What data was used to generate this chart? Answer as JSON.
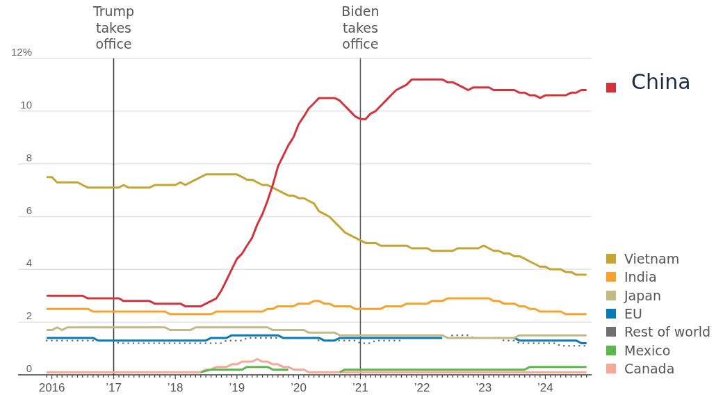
{
  "chart_data": {
    "type": "line",
    "line_style": "solid",
    "grid": "y",
    "legend": "right",
    "xlim": [
      "2015-06-15",
      "2024-10"
    ],
    "xticks": [
      {
        "value": "2015-12",
        "label": null
      },
      {
        "value": "2016-01",
        "label": "2016"
      },
      {
        "value": "2016-02",
        "label": null
      },
      {
        "value": "2016-03",
        "label": null
      },
      {
        "value": "2016-04",
        "label": null
      },
      {
        "value": "2016-05",
        "label": null
      },
      {
        "value": "2016-06",
        "label": null
      },
      {
        "value": "2016-07",
        "label": null
      },
      {
        "value": "2016-08",
        "label": null
      },
      {
        "value": "2016-09",
        "label": null
      },
      {
        "value": "2016-10",
        "label": null
      },
      {
        "value": "2016-11",
        "label": null
      },
      {
        "value": "2016-12",
        "label": null
      },
      {
        "value": "2017-01",
        "label": "’17"
      },
      {
        "value": "2017-02",
        "label": null
      },
      {
        "value": "2017-03",
        "label": null
      },
      {
        "value": "2017-04",
        "label": null
      },
      {
        "value": "2017-05",
        "label": null
      },
      {
        "value": "2017-06",
        "label": null
      },
      {
        "value": "2017-07",
        "label": null
      },
      {
        "value": "2017-08",
        "label": null
      },
      {
        "value": "2017-09",
        "label": null
      },
      {
        "value": "2017-10",
        "label": null
      },
      {
        "value": "2017-11",
        "label": null
      },
      {
        "value": "2017-12",
        "label": null
      },
      {
        "value": "2018-01",
        "label": "’18"
      },
      {
        "value": "2018-02",
        "label": null
      },
      {
        "value": "2018-03",
        "label": null
      },
      {
        "value": "2018-04",
        "label": null
      },
      {
        "value": "2018-05",
        "label": null
      },
      {
        "value": "2018-06",
        "label": null
      },
      {
        "value": "2018-07",
        "label": null
      },
      {
        "value": "2018-08",
        "label": null
      },
      {
        "value": "2018-09",
        "label": null
      },
      {
        "value": "2018-10",
        "label": null
      },
      {
        "value": "2018-11",
        "label": null
      },
      {
        "value": "2018-12",
        "label": null
      },
      {
        "value": "2019-01",
        "label": "’19"
      },
      {
        "value": "2019-02",
        "label": null
      },
      {
        "value": "2019-03",
        "label": null
      },
      {
        "value": "2019-04",
        "label": null
      },
      {
        "value": "2019-05",
        "label": null
      },
      {
        "value": "2019-06",
        "label": null
      },
      {
        "value": "2019-07",
        "label": null
      },
      {
        "value": "2019-08",
        "label": null
      },
      {
        "value": "2019-09",
        "label": null
      },
      {
        "value": "2019-10",
        "label": null
      },
      {
        "value": "2019-11",
        "label": null
      },
      {
        "value": "2019-12",
        "label": null
      },
      {
        "value": "2020-01",
        "label": "’20"
      },
      {
        "value": "2020-02",
        "label": null
      },
      {
        "value": "2020-03",
        "label": null
      },
      {
        "value": "2020-04",
        "label": null
      },
      {
        "value": "2020-05",
        "label": null
      },
      {
        "value": "2020-06",
        "label": null
      },
      {
        "value": "2020-07",
        "label": null
      },
      {
        "value": "2020-08",
        "label": null
      },
      {
        "value": "2020-09",
        "label": null
      },
      {
        "value": "2020-10",
        "label": null
      },
      {
        "value": "2020-11",
        "label": null
      },
      {
        "value": "2020-12",
        "label": null
      },
      {
        "value": "2021-01",
        "label": "’21"
      },
      {
        "value": "2021-02",
        "label": null
      },
      {
        "value": "2021-03",
        "label": null
      },
      {
        "value": "2021-04",
        "label": null
      },
      {
        "value": "2021-05",
        "label": null
      },
      {
        "value": "2021-06",
        "label": null
      },
      {
        "value": "2021-07",
        "label": null
      },
      {
        "value": "2021-08",
        "label": null
      },
      {
        "value": "2021-09",
        "label": null
      },
      {
        "value": "2021-10",
        "label": null
      },
      {
        "value": "2021-11",
        "label": null
      },
      {
        "value": "2021-12",
        "label": null
      },
      {
        "value": "2022-01",
        "label": "’22"
      },
      {
        "value": "2022-02",
        "label": null
      },
      {
        "value": "2022-03",
        "label": null
      },
      {
        "value": "2022-04",
        "label": null
      },
      {
        "value": "2022-05",
        "label": null
      },
      {
        "value": "2022-06",
        "label": null
      },
      {
        "value": "2022-07",
        "label": null
      },
      {
        "value": "2022-08",
        "label": null
      },
      {
        "value": "2022-09",
        "label": null
      },
      {
        "value": "2022-10",
        "label": null
      },
      {
        "value": "2022-11",
        "label": null
      },
      {
        "value": "2022-12",
        "label": null
      },
      {
        "value": "2023-01",
        "label": "’23"
      },
      {
        "value": "2023-02",
        "label": null
      },
      {
        "value": "2023-03",
        "label": null
      },
      {
        "value": "2023-04",
        "label": null
      },
      {
        "value": "2023-05",
        "label": null
      },
      {
        "value": "2023-06",
        "label": null
      },
      {
        "value": "2023-07",
        "label": null
      },
      {
        "value": "2023-08",
        "label": null
      },
      {
        "value": "2023-09",
        "label": null
      },
      {
        "value": "2023-10",
        "label": null
      },
      {
        "value": "2023-11",
        "label": null
      },
      {
        "value": "2023-12",
        "label": null
      },
      {
        "value": "2024-01",
        "label": "’24"
      },
      {
        "value": "2024-02",
        "label": null
      },
      {
        "value": "2024-03",
        "label": null
      },
      {
        "value": "2024-04",
        "label": null
      },
      {
        "value": "2024-05",
        "label": null
      },
      {
        "value": "2024-06",
        "label": null
      },
      {
        "value": "2024-07",
        "label": null
      },
      {
        "value": "2024-08",
        "label": null
      },
      {
        "value": "2024-09",
        "label": null
      }
    ],
    "ylim": [
      0,
      12
    ],
    "yticks": [
      0,
      2,
      4,
      6,
      8,
      10,
      {
        "value": 12,
        "label": "12%"
      }
    ],
    "ref_lines": [
      {
        "axis": "x",
        "value": "2017-01",
        "label": "Trump takes office",
        "color": "#333333"
      },
      {
        "axis": "x",
        "value": "2021-01",
        "label": "Biden takes office",
        "color": "#555555"
      }
    ],
    "series": [
      {
        "name": "China",
        "color": "#d2343d",
        "x": [
          "2015-12",
          "2016-07",
          "2016-08",
          "2017-02",
          "2017-03",
          "2017-08",
          "2017-09",
          "2018-02",
          "2018-03",
          "2018-06",
          "2018-07",
          "2018-08",
          "2018-09",
          "2018-10",
          "2018-11",
          "2018-12",
          "2019-01",
          "2019-02",
          "2019-03",
          "2019-04",
          "2019-05",
          "2019-06",
          "2019-07",
          "2019-08",
          "2019-09",
          "2019-10",
          "2019-11",
          "2019-12",
          "2020-01",
          "2020-02",
          "2020-03",
          "2020-04",
          "2020-05",
          "2020-08",
          "2020-09",
          "2020-10",
          "2020-11",
          "2020-12",
          "2021-01",
          "2021-02",
          "2021-03",
          "2021-04",
          "2021-05",
          "2021-06",
          "2021-07",
          "2021-08",
          "2021-09",
          "2021-10",
          "2021-11",
          "2022-05",
          "2022-06",
          "2022-07",
          "2022-08",
          "2022-09",
          "2022-10",
          "2022-11",
          "2023-02",
          "2023-03",
          "2023-07",
          "2023-08",
          "2023-09",
          "2023-10",
          "2023-11",
          "2023-12",
          "2024-01",
          "2024-05",
          "2024-06",
          "2024-07",
          "2024-08",
          "2024-09"
        ],
        "values": [
          3.0,
          3.0,
          2.9,
          2.9,
          2.8,
          2.8,
          2.7,
          2.7,
          2.6,
          2.6,
          2.7,
          2.8,
          2.9,
          3.2,
          3.6,
          4.0,
          4.4,
          4.6,
          4.9,
          5.2,
          5.7,
          6.1,
          6.6,
          7.2,
          7.9,
          8.3,
          8.7,
          9.0,
          9.5,
          9.8,
          10.1,
          10.3,
          10.5,
          10.5,
          10.4,
          10.2,
          10.0,
          9.8,
          9.7,
          9.7,
          9.9,
          10.0,
          10.2,
          10.4,
          10.6,
          10.8,
          10.9,
          11.0,
          11.2,
          11.2,
          11.1,
          11.1,
          11.0,
          10.9,
          10.8,
          10.9,
          10.9,
          10.8,
          10.8,
          10.7,
          10.7,
          10.6,
          10.6,
          10.5,
          10.6,
          10.6,
          10.7,
          10.7,
          10.8,
          10.8
        ]
      },
      {
        "name": "Vietnam",
        "color": "#c4a433",
        "x": [
          "2015-12",
          "2016-01",
          "2016-02",
          "2016-06",
          "2016-07",
          "2016-08",
          "2017-02",
          "2017-03",
          "2017-04",
          "2017-08",
          "2017-09",
          "2018-01",
          "2018-02",
          "2018-03",
          "2018-04",
          "2018-05",
          "2018-06",
          "2018-07",
          "2019-01",
          "2019-02",
          "2019-03",
          "2019-04",
          "2019-05",
          "2019-06",
          "2019-07",
          "2019-08",
          "2019-09",
          "2019-10",
          "2019-11",
          "2019-12",
          "2020-01",
          "2020-02",
          "2020-03",
          "2020-04",
          "2020-05",
          "2020-06",
          "2020-07",
          "2020-08",
          "2020-09",
          "2020-10",
          "2020-11",
          "2020-12",
          "2021-01",
          "2021-02",
          "2021-04",
          "2021-05",
          "2021-10",
          "2021-11",
          "2022-02",
          "2022-03",
          "2022-07",
          "2022-08",
          "2022-12",
          "2023-01",
          "2023-02",
          "2023-03",
          "2023-04",
          "2023-05",
          "2023-06",
          "2023-07",
          "2023-08",
          "2023-09",
          "2023-10",
          "2023-11",
          "2023-12",
          "2024-01",
          "2024-02",
          "2024-04",
          "2024-05",
          "2024-06",
          "2024-07",
          "2024-09"
        ],
        "values": [
          7.5,
          7.5,
          7.3,
          7.3,
          7.2,
          7.1,
          7.1,
          7.2,
          7.1,
          7.1,
          7.2,
          7.2,
          7.3,
          7.2,
          7.3,
          7.4,
          7.5,
          7.6,
          7.6,
          7.5,
          7.4,
          7.4,
          7.3,
          7.2,
          7.2,
          7.1,
          7.0,
          6.9,
          6.8,
          6.8,
          6.7,
          6.7,
          6.6,
          6.5,
          6.2,
          6.1,
          6.0,
          5.8,
          5.6,
          5.4,
          5.3,
          5.2,
          5.1,
          5.0,
          5.0,
          4.9,
          4.9,
          4.8,
          4.8,
          4.7,
          4.7,
          4.8,
          4.8,
          4.9,
          4.8,
          4.7,
          4.7,
          4.6,
          4.6,
          4.5,
          4.5,
          4.4,
          4.3,
          4.2,
          4.1,
          4.1,
          4.0,
          4.0,
          3.9,
          3.9,
          3.8,
          3.8
        ]
      },
      {
        "name": "India",
        "color": "#f8a12b",
        "x": [
          "2015-12",
          "2016-08",
          "2016-09",
          "2017-11",
          "2017-12",
          "2018-08",
          "2018-09",
          "2019-06",
          "2019-07",
          "2019-08",
          "2019-09",
          "2019-12",
          "2020-01",
          "2020-03",
          "2020-04",
          "2020-05",
          "2020-06",
          "2020-07",
          "2020-08",
          "2020-11",
          "2020-12",
          "2021-05",
          "2021-06",
          "2021-09",
          "2021-10",
          "2022-02",
          "2022-03",
          "2022-05",
          "2022-06",
          "2023-02",
          "2023-03",
          "2023-04",
          "2023-05",
          "2023-07",
          "2023-08",
          "2023-09",
          "2023-10",
          "2023-11",
          "2023-12",
          "2024-04",
          "2024-05",
          "2024-09"
        ],
        "values": [
          2.5,
          2.5,
          2.4,
          2.4,
          2.3,
          2.3,
          2.4,
          2.4,
          2.5,
          2.5,
          2.6,
          2.6,
          2.7,
          2.7,
          2.8,
          2.8,
          2.7,
          2.7,
          2.6,
          2.6,
          2.5,
          2.5,
          2.6,
          2.6,
          2.7,
          2.7,
          2.8,
          2.8,
          2.9,
          2.9,
          2.8,
          2.8,
          2.7,
          2.7,
          2.6,
          2.6,
          2.5,
          2.5,
          2.4,
          2.4,
          2.3,
          2.3
        ]
      },
      {
        "name": "Japan",
        "color": "#bfba86",
        "x": [
          "2015-12",
          "2016-01",
          "2016-02",
          "2016-03",
          "2016-04",
          "2017-11",
          "2017-12",
          "2018-04",
          "2018-05",
          "2019-07",
          "2019-08",
          "2020-02",
          "2020-03",
          "2020-08",
          "2020-09",
          "2022-05",
          "2022-06",
          "2023-07",
          "2023-08",
          "2024-09"
        ],
        "values": [
          1.7,
          1.7,
          1.8,
          1.7,
          1.8,
          1.8,
          1.7,
          1.7,
          1.8,
          1.8,
          1.7,
          1.7,
          1.6,
          1.6,
          1.5,
          1.5,
          1.4,
          1.4,
          1.5,
          1.5
        ]
      },
      {
        "name": "EU",
        "color": "#0b79b3",
        "x": [
          "2015-12",
          "2016-09",
          "2016-10",
          "2018-07",
          "2018-08",
          "2018-11",
          "2018-12",
          "2019-09",
          "2019-10",
          "2020-05",
          "2020-06",
          "2020-08",
          "2020-09",
          "2022-05",
          "2022-12",
          "2023-07",
          "2023-08",
          "2024-07",
          "2024-08",
          "2024-09"
        ],
        "values": [
          1.4,
          1.4,
          1.3,
          1.3,
          1.4,
          1.4,
          1.5,
          1.5,
          1.4,
          1.4,
          1.3,
          1.3,
          1.4,
          1.4,
          null,
          1.4,
          1.3,
          1.3,
          1.2,
          1.2
        ]
      },
      {
        "name": "Rest of world",
        "color": "#6f6f6f",
        "line_style": "dotted",
        "x": [
          "2015-12",
          "2016-09",
          "2017-01",
          "2017-02",
          "2018-10",
          "2018-11",
          "2019-02",
          "2019-03",
          "2019-09",
          "2019-12",
          "2020-04",
          "2020-05",
          "2020-12",
          "2021-01",
          "2021-03",
          "2021-04",
          "2021-09",
          "2022-01",
          "2022-06",
          "2022-07",
          "2022-10",
          "2022-11",
          "2023-01",
          "2023-04",
          "2023-05",
          "2023-07",
          "2023-08",
          "2024-03",
          "2024-04",
          "2024-09"
        ],
        "values": [
          1.3,
          1.3,
          1.3,
          1.2,
          1.2,
          1.3,
          1.3,
          1.4,
          1.4,
          null,
          1.4,
          1.3,
          1.3,
          1.2,
          1.2,
          1.3,
          1.3,
          null,
          1.4,
          1.5,
          1.5,
          1.4,
          null,
          1.4,
          1.3,
          1.3,
          1.2,
          1.2,
          1.1,
          1.1
        ]
      },
      {
        "name": "Mexico",
        "color": "#5cb84d",
        "x": [
          "2018-06",
          "2018-08",
          "2019-02",
          "2019-03",
          "2019-07",
          "2019-08",
          "2019-11",
          "2020-02",
          "2020-09",
          "2020-10",
          "2023-09",
          "2023-10",
          "2024-09"
        ],
        "values": [
          0.1,
          0.2,
          0.2,
          0.3,
          0.3,
          0.2,
          0.2,
          null,
          0.1,
          0.2,
          0.2,
          0.3,
          0.3
        ]
      },
      {
        "name": "Canada",
        "color": "#f5a898",
        "x": [
          "2015-12",
          "2018-06",
          "2018-07",
          "2018-08",
          "2018-09",
          "2018-11",
          "2018-12",
          "2019-01",
          "2019-02",
          "2019-04",
          "2019-05",
          "2019-06",
          "2019-07",
          "2019-08",
          "2019-09",
          "2019-10",
          "2019-11",
          "2019-12",
          "2020-02",
          "2020-03",
          "2024-09"
        ],
        "values": [
          0.1,
          0.1,
          0.2,
          0.2,
          0.3,
          0.3,
          0.4,
          0.4,
          0.5,
          0.5,
          0.6,
          0.5,
          0.5,
          0.4,
          0.4,
          0.3,
          0.3,
          0.2,
          0.2,
          0.1,
          0.1
        ]
      }
    ]
  }
}
